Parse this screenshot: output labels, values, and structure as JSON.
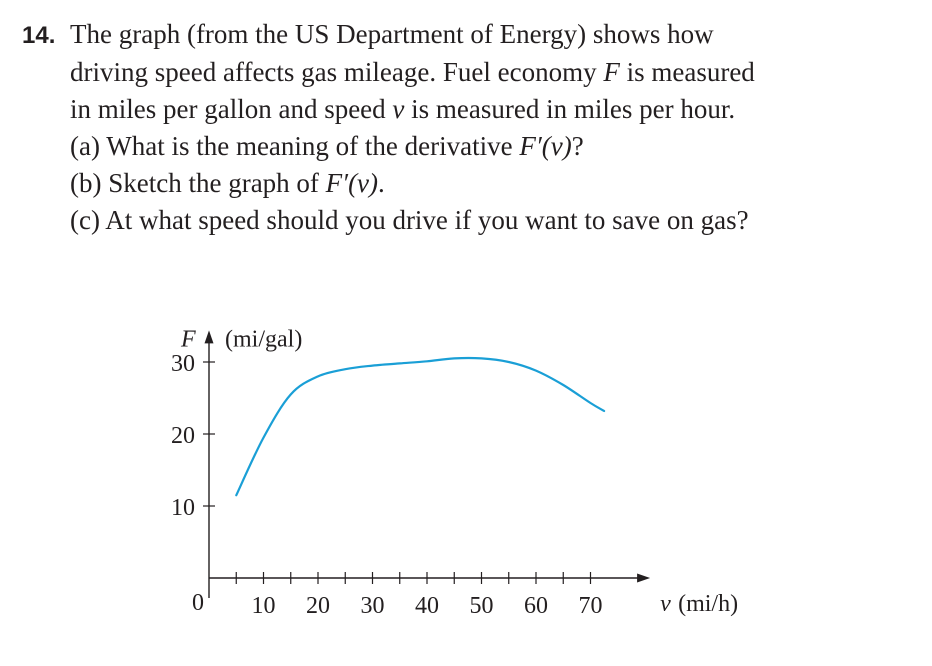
{
  "problem": {
    "number": "14.",
    "line1": "The graph (from the US Department of Energy) shows how",
    "line2_a": "driving speed affects gas mileage. Fuel economy ",
    "var_F": "F",
    "line2_b": " is measured",
    "line3_a": "in miles per gallon and speed ",
    "var_v": "v",
    "line3_b": " is measured in miles per hour.",
    "part_a_pre": "(a) What is the meaning of the derivative ",
    "part_a_expr": "F′(v)",
    "part_a_post": "?",
    "part_b_pre": "(b) Sketch the graph of ",
    "part_b_expr": "F′(v)",
    "part_b_post": ".",
    "part_c": "(c) At what speed should you drive if you want to save on gas?"
  },
  "chart_data": {
    "type": "line",
    "y_axis_var": "F",
    "y_axis_unit": "(mi/gal)",
    "x_axis_var": "v",
    "x_axis_unit": "(mi/h)",
    "origin_label": "0",
    "x_ticks": [
      5,
      10,
      15,
      20,
      25,
      30,
      35,
      40,
      45,
      50,
      55,
      60,
      65,
      70
    ],
    "x_tick_labels": [
      10,
      20,
      30,
      40,
      50,
      60,
      70
    ],
    "y_ticks": [
      10,
      20,
      30
    ],
    "y_tick_labels": [
      10,
      20,
      30
    ],
    "xlim": [
      0,
      78
    ],
    "ylim": [
      0,
      33
    ],
    "series": [
      {
        "color": "#1a9fd6",
        "x": [
          5,
          10,
          15,
          20,
          25,
          30,
          35,
          40,
          45,
          50,
          55,
          60,
          65,
          70,
          72.5
        ],
        "y": [
          11.5,
          19.5,
          25.5,
          28.0,
          29.0,
          29.5,
          29.8,
          30.1,
          30.5,
          30.5,
          30.0,
          28.8,
          26.8,
          24.3,
          23.2
        ]
      }
    ]
  }
}
